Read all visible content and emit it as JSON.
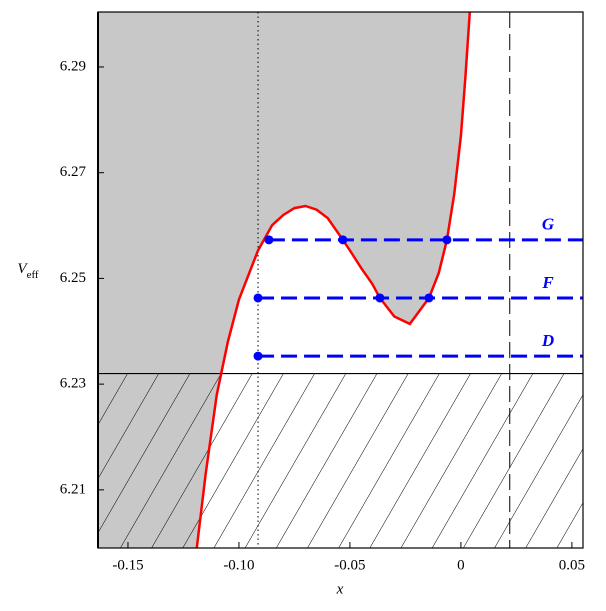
{
  "chart_data": {
    "type": "line",
    "xlabel": "x",
    "ylabel": {
      "main": "V",
      "sub": "eff"
    },
    "xlim": [
      -0.1635,
      0.055
    ],
    "ylim": [
      6.199,
      6.3004
    ],
    "xticks": [
      {
        "value": -0.15,
        "label": "-0.15"
      },
      {
        "value": -0.1,
        "label": "-0.10"
      },
      {
        "value": -0.05,
        "label": "-0.05"
      },
      0,
      0.05
    ],
    "yticks": [
      6.21,
      6.23,
      6.25,
      6.27,
      6.29
    ],
    "series": [
      {
        "color": "#ff0000",
        "x": [
          -0.119,
          -0.115,
          -0.11,
          -0.105,
          -0.1,
          -0.0914,
          -0.085,
          -0.08,
          -0.075,
          -0.07,
          -0.065,
          -0.06,
          -0.0532,
          -0.05,
          -0.045,
          -0.04,
          -0.0365,
          -0.03,
          -0.023,
          -0.0144,
          -0.01,
          -0.0063,
          -0.003,
          0,
          0.002,
          0.004
        ],
        "values": [
          6.199,
          6.213,
          6.228,
          6.238,
          6.246,
          6.2553,
          6.2601,
          6.262,
          6.2633,
          6.2637,
          6.263,
          6.2614,
          6.2573,
          6.2553,
          6.252,
          6.249,
          6.2463,
          6.2428,
          6.2414,
          6.2463,
          6.251,
          6.2573,
          6.266,
          6.277,
          6.288,
          6.3004
        ]
      }
    ],
    "levels": [
      {
        "name": "G",
        "value": 6.2573,
        "points": [
          -0.0865,
          -0.0532,
          -0.0063
        ],
        "color": "#0000ff"
      },
      {
        "name": "F",
        "value": 6.2463,
        "points": [
          -0.0914,
          -0.0365,
          -0.0144
        ],
        "color": "#0000ff"
      },
      {
        "name": "D",
        "value": 6.2353,
        "points": [
          -0.0914
        ],
        "color": "#0000ff"
      }
    ],
    "vlines": [
      {
        "value": -0.0914,
        "style": "dotted"
      },
      {
        "value": 0.022,
        "style": "dashed"
      }
    ],
    "hatch_below": 6.232,
    "shade_color": "#c8c8c8"
  }
}
